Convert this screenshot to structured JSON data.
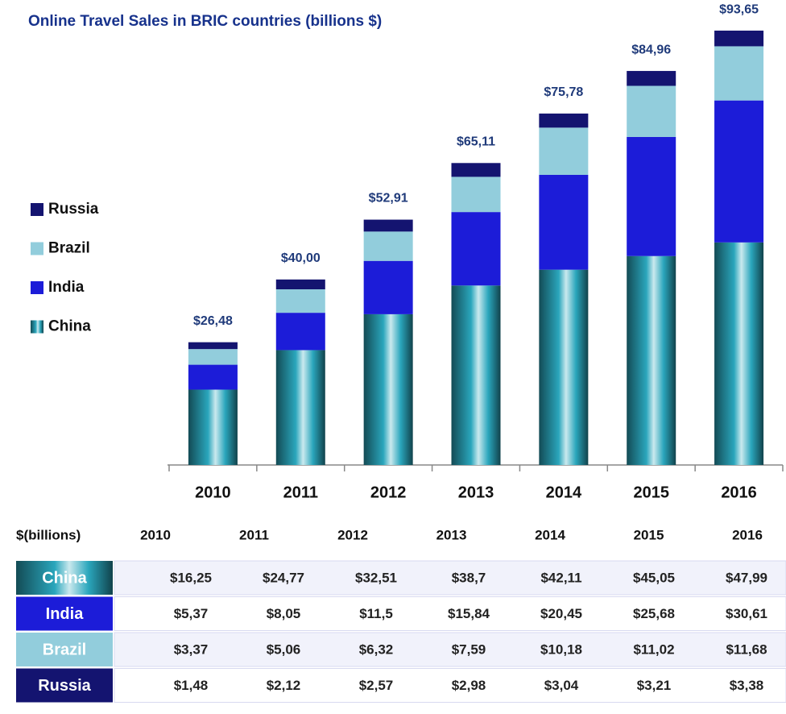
{
  "chart_data": {
    "type": "bar",
    "stacked": true,
    "title": "Online Travel Sales in BRIC countries (billions $)",
    "categories": [
      "2010",
      "2011",
      "2012",
      "2013",
      "2014",
      "2015",
      "2016"
    ],
    "series": [
      {
        "name": "China",
        "color": "#2aa6bc",
        "gradient": true,
        "values": [
          16.25,
          24.77,
          32.51,
          38.7,
          42.11,
          45.05,
          47.99
        ],
        "value_labels": [
          "$16,25",
          "$24,77",
          "$32,51",
          "$38,7",
          "$42,11",
          "$45,05",
          "$47,99"
        ]
      },
      {
        "name": "India",
        "color": "#1c1cd8",
        "values": [
          5.37,
          8.05,
          11.5,
          15.84,
          20.45,
          25.68,
          30.61
        ],
        "value_labels": [
          "$5,37",
          "$8,05",
          "$11,5",
          "$15,84",
          "$20,45",
          "$25,68",
          "$30,61"
        ]
      },
      {
        "name": "Brazil",
        "color": "#92cddc",
        "values": [
          3.37,
          5.06,
          6.32,
          7.59,
          10.18,
          11.02,
          11.68
        ],
        "value_labels": [
          "$3,37",
          "$5,06",
          "$6,32",
          "$7,59",
          "$10,18",
          "$11,02",
          "$11,68"
        ]
      },
      {
        "name": "Russia",
        "color": "#141470",
        "values": [
          1.48,
          2.12,
          2.57,
          2.98,
          3.04,
          3.21,
          3.38
        ],
        "value_labels": [
          "$1,48",
          "$2,12",
          "$2,57",
          "$2,98",
          "$3,04",
          "$3,21",
          "$3,38"
        ]
      }
    ],
    "totals": [
      26.48,
      40.0,
      52.91,
      65.11,
      75.78,
      84.96,
      93.65
    ],
    "total_labels": [
      "$26,48",
      "$40,00",
      "$52,91",
      "$65,11",
      "$75,78",
      "$84,96",
      "$93,65"
    ],
    "ylim": [
      0,
      100
    ],
    "legend": "left"
  },
  "table": {
    "header": "$(billions)"
  }
}
